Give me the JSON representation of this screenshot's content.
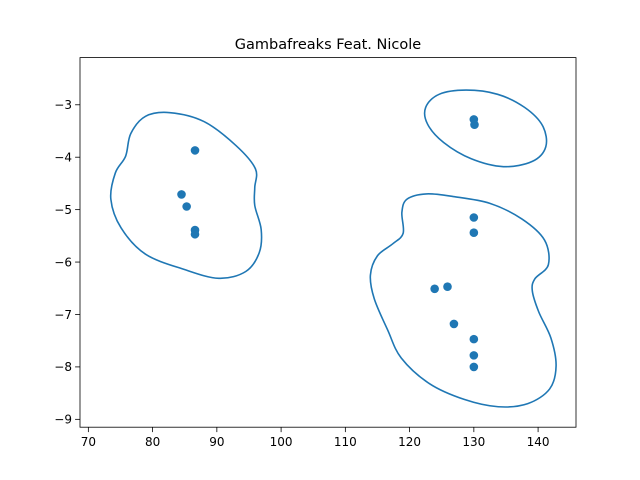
{
  "chart_data": {
    "type": "scatter",
    "title": "Gambafreaks Feat. Nicole",
    "xlabel": "",
    "ylabel": "",
    "xlim": [
      68.7,
      145.9
    ],
    "ylim": [
      -9.15,
      -2.1
    ],
    "xticks": [
      70,
      80,
      90,
      100,
      110,
      120,
      130,
      140
    ],
    "yticks": [
      -9,
      -8,
      -7,
      -6,
      -5,
      -4,
      -3
    ],
    "grid": false,
    "colors": {
      "marker": "#1f77b4",
      "contour": "#1f77b4",
      "axes": "#000000"
    },
    "points": [
      {
        "x": 86.6,
        "y": -3.87
      },
      {
        "x": 84.5,
        "y": -4.71
      },
      {
        "x": 85.3,
        "y": -4.94
      },
      {
        "x": 86.6,
        "y": -5.39
      },
      {
        "x": 86.6,
        "y": -5.47
      },
      {
        "x": 130.0,
        "y": -3.28
      },
      {
        "x": 130.1,
        "y": -3.38
      },
      {
        "x": 130.0,
        "y": -5.15
      },
      {
        "x": 130.0,
        "y": -5.44
      },
      {
        "x": 123.9,
        "y": -6.51
      },
      {
        "x": 125.9,
        "y": -6.47
      },
      {
        "x": 126.9,
        "y": -7.18
      },
      {
        "x": 130.0,
        "y": -7.47
      },
      {
        "x": 130.0,
        "y": -7.78
      },
      {
        "x": 130.0,
        "y": -8.0
      }
    ],
    "contours": [
      {
        "points": [
          [
            82.7,
            -3.15
          ],
          [
            88.0,
            -3.32
          ],
          [
            93.0,
            -3.78
          ],
          [
            96.0,
            -4.22
          ],
          [
            95.9,
            -4.58
          ],
          [
            95.9,
            -4.92
          ],
          [
            96.9,
            -5.38
          ],
          [
            96.6,
            -5.82
          ],
          [
            94.5,
            -6.18
          ],
          [
            90.3,
            -6.31
          ],
          [
            84.9,
            -6.14
          ],
          [
            78.9,
            -5.85
          ],
          [
            75.1,
            -5.35
          ],
          [
            73.5,
            -4.8
          ],
          [
            74.2,
            -4.3
          ],
          [
            75.8,
            -3.98
          ],
          [
            76.6,
            -3.55
          ],
          [
            78.9,
            -3.22
          ]
        ]
      },
      {
        "points": [
          [
            128.8,
            -2.72
          ],
          [
            133.7,
            -2.8
          ],
          [
            137.9,
            -3.05
          ],
          [
            140.7,
            -3.4
          ],
          [
            141.2,
            -3.8
          ],
          [
            139.1,
            -4.08
          ],
          [
            134.6,
            -4.18
          ],
          [
            129.6,
            -4.03
          ],
          [
            125.3,
            -3.72
          ],
          [
            122.8,
            -3.37
          ],
          [
            122.5,
            -3.05
          ],
          [
            124.6,
            -2.8
          ]
        ]
      },
      {
        "points": [
          [
            126.8,
            -4.75
          ],
          [
            132.5,
            -4.88
          ],
          [
            137.5,
            -5.18
          ],
          [
            141.0,
            -5.58
          ],
          [
            141.6,
            -6.05
          ],
          [
            139.5,
            -6.32
          ],
          [
            139.1,
            -6.55
          ],
          [
            140.1,
            -6.95
          ],
          [
            142.0,
            -7.45
          ],
          [
            142.8,
            -7.98
          ],
          [
            141.8,
            -8.42
          ],
          [
            138.4,
            -8.7
          ],
          [
            133.8,
            -8.76
          ],
          [
            128.5,
            -8.62
          ],
          [
            123.1,
            -8.32
          ],
          [
            118.7,
            -7.83
          ],
          [
            116.6,
            -7.3
          ],
          [
            114.5,
            -6.7
          ],
          [
            113.9,
            -6.25
          ],
          [
            115.0,
            -5.88
          ],
          [
            117.4,
            -5.65
          ],
          [
            119.0,
            -5.45
          ],
          [
            118.8,
            -5.05
          ],
          [
            119.6,
            -4.8
          ],
          [
            122.6,
            -4.7
          ]
        ]
      }
    ]
  }
}
